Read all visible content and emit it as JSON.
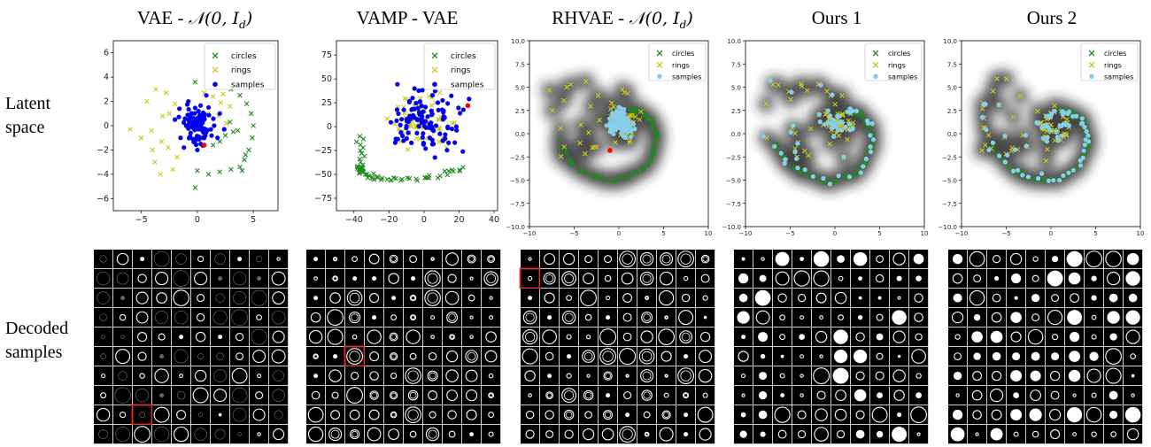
{
  "row_labels": {
    "latent": [
      "Latent",
      "space"
    ],
    "decoded": [
      "Decoded",
      "samples"
    ]
  },
  "columns": [
    {
      "title": "VAE - 𝒩(0, I_d)",
      "title_main": "VAE - ",
      "title_math": "𝒩(0, I",
      "title_sub": "d",
      "title_end": ")"
    },
    {
      "title": "VAMP - VAE",
      "title_main": "VAMP - VAE",
      "title_math": "",
      "title_sub": "",
      "title_end": ""
    },
    {
      "title": "RHVAE - 𝒩(0, I_d)",
      "title_main": "RHVAE - ",
      "title_math": "𝒩(0, I",
      "title_sub": "d",
      "title_end": ")"
    },
    {
      "title": "Ours 1",
      "title_main": "Ours 1",
      "title_math": "",
      "title_sub": "",
      "title_end": ""
    },
    {
      "title": "Ours 2",
      "title_main": "Ours 2",
      "title_math": "",
      "title_sub": "",
      "title_end": ""
    }
  ],
  "legend": {
    "circles": "circles",
    "rings": "rings",
    "samples": "samples"
  },
  "colors": {
    "circles": "#1e8a1e",
    "rings": "#c8c81e",
    "samples_blue": "#0000ee",
    "samples_light": "#87ceeb",
    "marker_red": "#ff0000",
    "highlight_box": "#e03030"
  },
  "chart_data": [
    {
      "type": "scatter",
      "panel": "VAE - N(0, I_d)",
      "xlim": [
        -7.5,
        7.2
      ],
      "ylim": [
        -7,
        7
      ],
      "xticks": [
        "-5",
        "0",
        "5"
      ],
      "yticks": [
        "6",
        "4",
        "2",
        "0",
        "-2",
        "-4",
        "-6"
      ],
      "series": [
        {
          "name": "circles",
          "marker": "x",
          "points": [
            [
              -0.2,
              3.6
            ],
            [
              1,
              3.4
            ],
            [
              2,
              3.3
            ],
            [
              3,
              3
            ],
            [
              3.8,
              2.5
            ],
            [
              4.4,
              1.8
            ],
            [
              4.8,
              1
            ],
            [
              5,
              0
            ],
            [
              4.9,
              -1
            ],
            [
              4.6,
              -2
            ],
            [
              4.2,
              -2.8
            ],
            [
              3.8,
              -3.4
            ],
            [
              3,
              -3.6
            ],
            [
              2,
              -3.8
            ],
            [
              1,
              -4
            ],
            [
              0,
              -3.7
            ],
            [
              -0.2,
              -5.1
            ],
            [
              3.2,
              -0.5
            ],
            [
              2.5,
              -0.8
            ],
            [
              2,
              -1.3
            ],
            [
              1.4,
              -1.6
            ],
            [
              2.9,
              0.3
            ],
            [
              3.6,
              -0.4
            ],
            [
              4.3,
              -2.4
            ],
            [
              4,
              -3.7
            ]
          ]
        },
        {
          "name": "rings",
          "marker": "x",
          "points": [
            [
              -6,
              -0.3
            ],
            [
              -5,
              -1
            ],
            [
              -4,
              -2
            ],
            [
              -4.5,
              2
            ],
            [
              -3.7,
              3
            ],
            [
              -3.8,
              -3
            ],
            [
              -3.3,
              -4
            ],
            [
              -2.2,
              -3.6
            ],
            [
              -2.8,
              2.7
            ],
            [
              -2.5,
              1
            ],
            [
              -3.1,
              0.8
            ],
            [
              -1.8,
              -2.6
            ],
            [
              -1.5,
              -1
            ],
            [
              0.6,
              2.7
            ],
            [
              1.4,
              2.4
            ],
            [
              2.1,
              1.9
            ],
            [
              1.9,
              0.8
            ],
            [
              2.6,
              0.2
            ],
            [
              -2,
              1.8
            ],
            [
              -3.2,
              -1.3
            ],
            [
              -4.1,
              -0.4
            ],
            [
              -2.6,
              -1.8
            ],
            [
              2.3,
              2.6
            ],
            [
              2.9,
              1.6
            ],
            [
              1,
              1
            ]
          ]
        },
        {
          "name": "samples",
          "marker": "o",
          "points": [
            [
              -1,
              0
            ],
            [
              0,
              0.5
            ],
            [
              0.5,
              -0.5
            ],
            [
              -0.5,
              1
            ],
            [
              1,
              1.5
            ],
            [
              -1.5,
              -1
            ],
            [
              0.3,
              -1.5
            ],
            [
              1.5,
              0
            ],
            [
              -0.8,
              2
            ],
            [
              0.8,
              2.5
            ],
            [
              -2,
              0.5
            ],
            [
              0,
              -2
            ],
            [
              1.8,
              -1
            ],
            [
              -1.2,
              -1.8
            ],
            [
              2,
              1
            ],
            [
              -0.3,
              0.2
            ],
            [
              0.6,
              0.8
            ],
            [
              -0.6,
              -0.6
            ],
            [
              1.2,
              -0.3
            ],
            [
              0.1,
              1.2
            ],
            [
              -1.6,
              1.4
            ],
            [
              2.4,
              -0.3
            ],
            [
              -0.4,
              -1.1
            ]
          ]
        }
      ]
    },
    {
      "type": "scatter",
      "panel": "VAMP - VAE",
      "xlim": [
        -50,
        42
      ],
      "ylim": [
        -88,
        90
      ],
      "xticks": [
        "-40",
        "-20",
        "0",
        "20",
        "40"
      ],
      "yticks": [
        "75",
        "50",
        "25",
        "0",
        "-25",
        "-50",
        "-75"
      ],
      "series": [
        {
          "name": "circles",
          "marker": "x"
        },
        {
          "name": "rings",
          "marker": "x"
        },
        {
          "name": "samples",
          "marker": "o"
        }
      ]
    },
    {
      "type": "scatter",
      "panel": "RHVAE - N(0, I_d)",
      "xlim": [
        -10,
        10
      ],
      "ylim": [
        -10,
        10
      ],
      "xticks": [
        "-10",
        "-5",
        "0",
        "5",
        "10"
      ],
      "yticks": [
        "10.0",
        "7.5",
        "5.0",
        "2.5",
        "0.0",
        "-2.5",
        "-5.0",
        "-7.5",
        "-10.0"
      ],
      "series": [
        {
          "name": "circles",
          "marker": "x"
        },
        {
          "name": "rings",
          "marker": "x"
        },
        {
          "name": "samples",
          "marker": "o"
        }
      ]
    },
    {
      "type": "scatter",
      "panel": "Ours 1",
      "xlim": [
        -10,
        10
      ],
      "ylim": [
        -10,
        10
      ],
      "xticks": [
        "-10",
        "-5",
        "0",
        "5",
        "10"
      ],
      "yticks": [
        "10.0",
        "7.5",
        "5.0",
        "2.5",
        "0.0",
        "-2.5",
        "-5.0",
        "-7.5",
        "-10.0"
      ],
      "series": [
        {
          "name": "circles",
          "marker": "x"
        },
        {
          "name": "rings",
          "marker": "x"
        },
        {
          "name": "samples",
          "marker": "o"
        }
      ]
    },
    {
      "type": "scatter",
      "panel": "Ours 2",
      "xlim": [
        -10,
        10
      ],
      "ylim": [
        -10,
        10
      ],
      "xticks": [
        "-10",
        "-5",
        "0",
        "5",
        "10"
      ],
      "yticks": [
        "10.0",
        "7.5",
        "5.0",
        "2.5",
        "0.0",
        "-2.5",
        "-5.0",
        "-7.5",
        "-10.0"
      ],
      "series": [
        {
          "name": "circles",
          "marker": "x"
        },
        {
          "name": "rings",
          "marker": "x"
        },
        {
          "name": "samples",
          "marker": "o"
        }
      ]
    }
  ]
}
